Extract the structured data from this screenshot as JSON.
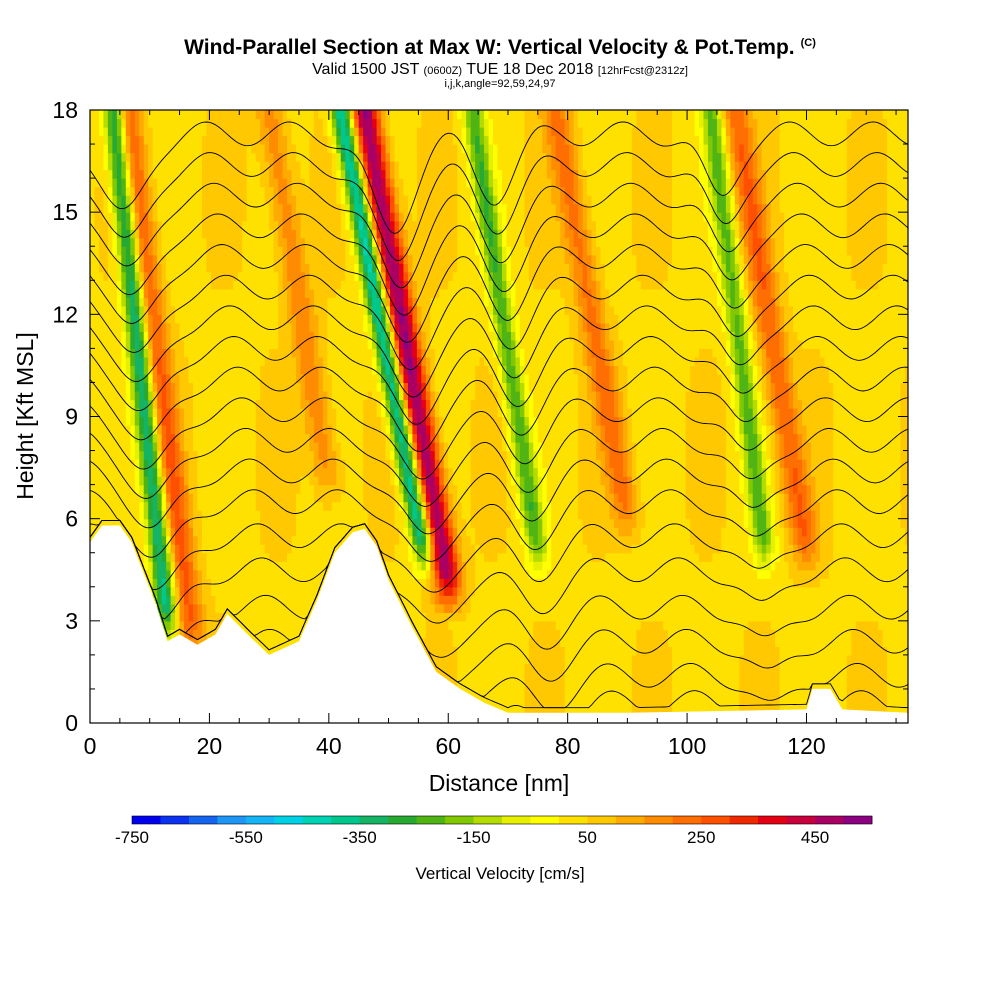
{
  "header": {
    "title": "Wind-Parallel Section at Max W: Vertical Velocity & Pot.Temp.",
    "copyright_mark": "(C)",
    "subtitle_main": "Valid 1500 JST",
    "subtitle_utc": "(0600Z)",
    "subtitle_date": "TUE 18 Dec 2018",
    "subtitle_run": "[12hrFcst@2312z]",
    "params": "i,j,k,angle=92,59,24,97"
  },
  "chart_data": {
    "type": "heatmap",
    "title": "Wind-Parallel Section at Max W: Vertical Velocity & Pot.Temp.",
    "xlabel": "Distance [nm]",
    "ylabel": "Height [Kft MSL]",
    "xlim": [
      0,
      137
    ],
    "ylim": [
      0,
      18
    ],
    "x_ticks": [
      0,
      20,
      40,
      60,
      80,
      100,
      120
    ],
    "y_ticks": [
      0,
      3,
      6,
      9,
      12,
      15,
      18
    ],
    "x_tick_labels": [
      "0",
      "20",
      "40",
      "60",
      "80",
      "100",
      "120"
    ],
    "y_tick_labels": [
      "0",
      "3",
      "6",
      "9",
      "12",
      "15",
      "18"
    ],
    "colorbar": {
      "label": "Vertical Velocity [cm/s]",
      "range": [
        -750,
        550
      ],
      "step": 50,
      "tick_values": [
        -750,
        -550,
        -350,
        -150,
        50,
        250,
        450
      ],
      "tick_labels": [
        "-750",
        "-550",
        "-350",
        "-150",
        "50",
        "250",
        "450"
      ],
      "colors": [
        "#0000ee",
        "#0a32f0",
        "#1464f0",
        "#1e96f5",
        "#14b4f5",
        "#00d2e6",
        "#00d2b4",
        "#00c88c",
        "#14b464",
        "#28aa32",
        "#50b414",
        "#82c800",
        "#b4dc00",
        "#e6f000",
        "#ffff00",
        "#ffe100",
        "#ffc800",
        "#ffaa00",
        "#ff8c00",
        "#ff6e00",
        "#ff5000",
        "#f02800",
        "#e60014",
        "#c8003c",
        "#aa0064",
        "#8c0082"
      ]
    },
    "updraft_bands_tilted": [
      {
        "base_x": 60,
        "base_z": 4,
        "top_x": 46,
        "top_z": 18,
        "peak_w": 475
      },
      {
        "base_x": 17,
        "base_z": 2.5,
        "top_x": 6,
        "top_z": 18,
        "peak_w": 225
      },
      {
        "base_x": 40,
        "base_z": 7,
        "top_x": 30,
        "top_z": 18,
        "peak_w": 150
      },
      {
        "base_x": 90,
        "base_z": 6,
        "top_x": 78,
        "top_z": 18,
        "peak_w": 175
      },
      {
        "base_x": 120,
        "base_z": 5,
        "top_x": 108,
        "top_z": 18,
        "peak_w": 200
      }
    ],
    "downdraft_bands_tilted": [
      {
        "base_x": 13,
        "base_z": 3,
        "top_x": 4,
        "top_z": 18,
        "peak_w": -425
      },
      {
        "base_x": 56,
        "base_z": 5,
        "top_x": 42,
        "top_z": 18,
        "peak_w": -475
      },
      {
        "base_x": 75,
        "base_z": 5,
        "top_x": 64,
        "top_z": 18,
        "peak_w": -275
      },
      {
        "base_x": 113,
        "base_z": 5,
        "top_x": 104,
        "top_z": 18,
        "peak_w": -250
      }
    ],
    "terrain": [
      {
        "x": 0,
        "z": 5.3
      },
      {
        "x": 2,
        "z": 5.8
      },
      {
        "x": 5,
        "z": 5.8
      },
      {
        "x": 7,
        "z": 5.3
      },
      {
        "x": 9,
        "z": 4.4
      },
      {
        "x": 11,
        "z": 3.5
      },
      {
        "x": 13,
        "z": 2.4
      },
      {
        "x": 15,
        "z": 2.6
      },
      {
        "x": 18,
        "z": 2.3
      },
      {
        "x": 21,
        "z": 2.6
      },
      {
        "x": 23,
        "z": 3.2
      },
      {
        "x": 27,
        "z": 2.5
      },
      {
        "x": 30,
        "z": 2.0
      },
      {
        "x": 35,
        "z": 2.4
      },
      {
        "x": 38,
        "z": 3.6
      },
      {
        "x": 41,
        "z": 5.0
      },
      {
        "x": 44,
        "z": 5.6
      },
      {
        "x": 46,
        "z": 5.7
      },
      {
        "x": 48,
        "z": 5.2
      },
      {
        "x": 50,
        "z": 4.2
      },
      {
        "x": 54,
        "z": 2.8
      },
      {
        "x": 58,
        "z": 1.5
      },
      {
        "x": 62,
        "z": 1.0
      },
      {
        "x": 66,
        "z": 0.6
      },
      {
        "x": 70,
        "z": 0.3
      },
      {
        "x": 90,
        "z": 0.3
      },
      {
        "x": 120,
        "z": 0.4
      },
      {
        "x": 121,
        "z": 1.0
      },
      {
        "x": 124,
        "z": 1.0
      },
      {
        "x": 126,
        "z": 0.4
      },
      {
        "x": 137,
        "z": 0.3
      }
    ],
    "theta_contours": {
      "levels": [
        300,
        302,
        304,
        306,
        308,
        310,
        312,
        314,
        316,
        318,
        320,
        322,
        324,
        326,
        328,
        330,
        332,
        334,
        336
      ],
      "base_heights_kft": [
        0.6,
        1.4,
        2.4,
        3.4,
        4.5,
        5.5,
        6.5,
        7.4,
        8.3,
        9.2,
        10.1,
        11.0,
        11.9,
        12.8,
        13.7,
        14.6,
        15.5,
        16.4,
        17.3
      ],
      "wave_dips": [
        {
          "x": 13,
          "depth_kft": 2.6,
          "width_nm": 5
        },
        {
          "x": 58,
          "depth_kft": 3.0,
          "width_nm": 5
        },
        {
          "x": 75,
          "depth_kft": 1.8,
          "width_nm": 5
        },
        {
          "x": 113,
          "depth_kft": 2.0,
          "width_nm": 4
        }
      ]
    }
  }
}
